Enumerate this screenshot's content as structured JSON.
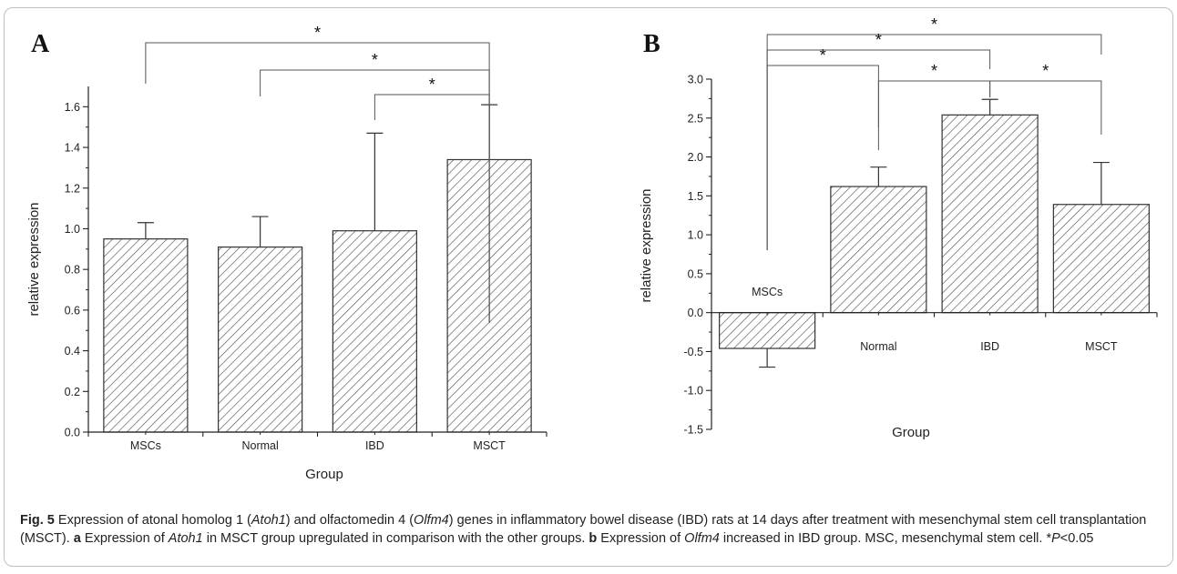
{
  "chart_data": [
    {
      "panel": "A",
      "type": "bar",
      "categories": [
        "MSCs",
        "Normal",
        "IBD",
        "MSCT"
      ],
      "values": [
        0.95,
        0.91,
        0.99,
        1.34
      ],
      "errors": [
        0.08,
        0.15,
        0.48,
        0.27
      ],
      "xlabel": "Group",
      "ylabel": "relative expression",
      "ylim": [
        0,
        1.7
      ],
      "yticks": [
        "0.0",
        "0.2",
        "0.4",
        "0.6",
        "0.8",
        "1.0",
        "1.2",
        "1.4",
        "1.6"
      ],
      "significance": [
        {
          "from": "MSCs",
          "to": "MSCT",
          "label": "*"
        },
        {
          "from": "Normal",
          "to": "MSCT",
          "label": "*"
        },
        {
          "from": "IBD",
          "to": "MSCT",
          "label": "*"
        }
      ],
      "fill": "diagonal-hatch"
    },
    {
      "panel": "B",
      "type": "bar",
      "categories": [
        "MSCs",
        "Normal",
        "IBD",
        "MSCT"
      ],
      "values": [
        -0.46,
        1.62,
        2.54,
        1.39
      ],
      "errors": [
        0.24,
        0.25,
        0.2,
        0.54
      ],
      "xlabel": "Group",
      "ylabel": "relative expression",
      "ylim": [
        -1.5,
        3.0
      ],
      "yticks": [
        "-1.5",
        "-1.0",
        "-0.5",
        "0.0",
        "0.5",
        "1.0",
        "1.5",
        "2.0",
        "2.5",
        "3.0"
      ],
      "significance": [
        {
          "from": "MSCs",
          "to": "MSCT",
          "label": "*"
        },
        {
          "from": "MSCs",
          "to": "IBD",
          "label": "*"
        },
        {
          "from": "MSCs",
          "to": "Normal",
          "label": "*"
        },
        {
          "from": "Normal",
          "to": "IBD",
          "label": "*"
        },
        {
          "from": "IBD",
          "to": "MSCT",
          "label": "*"
        }
      ],
      "fill": "diagonal-hatch"
    }
  ],
  "caption": {
    "label": "Fig. 5",
    "text_1": " Expression of atonal homolog 1 (",
    "atoh1": "Atoh1",
    "text_2": ") and olfactomedin 4 (",
    "olfm4": "Olfm4",
    "text_3": ") genes in inflammatory bowel disease (IBD) rats at 14 days after treatment with mesenchymal stem cell transplantation (MSCT). ",
    "part_a": "a",
    "text_4": " Expression of ",
    "atoh1_2": "Atoh1",
    "text_5": " in MSCT group upregulated in comparison with the other groups. ",
    "part_b": "b",
    "text_6": " Expression of ",
    "olfm4_2": "Olfm4",
    "text_7": " increased in IBD group. MSC, mesenchymal stem cell. *",
    "p_italic": "P",
    "text_8": "<0.05"
  },
  "colors": {
    "bar_stroke": "#333333",
    "hatch": "#555555",
    "axis": "#222222",
    "frame": "#bfbfbf"
  }
}
